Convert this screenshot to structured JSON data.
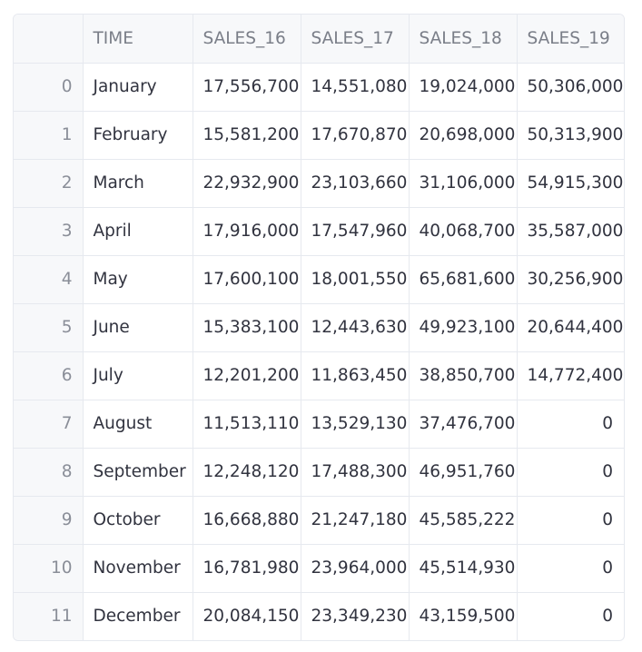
{
  "table": {
    "columns": [
      "",
      "TIME",
      "SALES_16",
      "SALES_17",
      "SALES_18",
      "SALES_19"
    ],
    "rows": [
      {
        "index": "0",
        "time": "January",
        "sales_16": "17,556,700",
        "sales_17": "14,551,080",
        "sales_18": "19,024,000",
        "sales_19": "50,306,000"
      },
      {
        "index": "1",
        "time": "February",
        "sales_16": "15,581,200",
        "sales_17": "17,670,870",
        "sales_18": "20,698,000",
        "sales_19": "50,313,900"
      },
      {
        "index": "2",
        "time": "March",
        "sales_16": "22,932,900",
        "sales_17": "23,103,660",
        "sales_18": "31,106,000",
        "sales_19": "54,915,300"
      },
      {
        "index": "3",
        "time": "April",
        "sales_16": "17,916,000",
        "sales_17": "17,547,960",
        "sales_18": "40,068,700",
        "sales_19": "35,587,000"
      },
      {
        "index": "4",
        "time": "May",
        "sales_16": "17,600,100",
        "sales_17": "18,001,550",
        "sales_18": "65,681,600",
        "sales_19": "30,256,900"
      },
      {
        "index": "5",
        "time": "June",
        "sales_16": "15,383,100",
        "sales_17": "12,443,630",
        "sales_18": "49,923,100",
        "sales_19": "20,644,400"
      },
      {
        "index": "6",
        "time": "July",
        "sales_16": "12,201,200",
        "sales_17": "11,863,450",
        "sales_18": "38,850,700",
        "sales_19": "14,772,400"
      },
      {
        "index": "7",
        "time": "August",
        "sales_16": "11,513,110",
        "sales_17": "13,529,130",
        "sales_18": "37,476,700",
        "sales_19": "0"
      },
      {
        "index": "8",
        "time": "September",
        "sales_16": "12,248,120",
        "sales_17": "17,488,300",
        "sales_18": "46,951,760",
        "sales_19": "0"
      },
      {
        "index": "9",
        "time": "October",
        "sales_16": "16,668,880",
        "sales_17": "21,247,180",
        "sales_18": "45,585,222",
        "sales_19": "0"
      },
      {
        "index": "10",
        "time": "November",
        "sales_16": "16,781,980",
        "sales_17": "23,964,000",
        "sales_18": "45,514,930",
        "sales_19": "0"
      },
      {
        "index": "11",
        "time": "December",
        "sales_16": "20,084,150",
        "sales_17": "23,349,230",
        "sales_18": "43,159,500",
        "sales_19": "0"
      }
    ]
  }
}
